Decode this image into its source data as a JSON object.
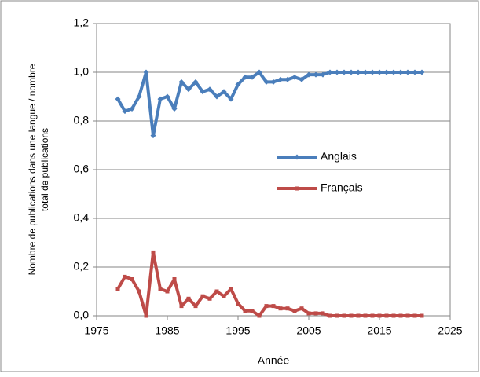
{
  "chart_data": {
    "type": "line",
    "x_label": "Année",
    "y_label": [
      "Nombre de publications dans une langue / nombre",
      "total de publications"
    ],
    "x": [
      1978,
      1979,
      1980,
      1981,
      1982,
      1983,
      1984,
      1985,
      1986,
      1987,
      1988,
      1989,
      1990,
      1991,
      1992,
      1993,
      1994,
      1995,
      1996,
      1997,
      1998,
      1999,
      2000,
      2001,
      2002,
      2003,
      2004,
      2005,
      2006,
      2007,
      2008,
      2009,
      2010,
      2011,
      2012,
      2013,
      2014,
      2015,
      2016,
      2017,
      2018,
      2019,
      2020,
      2021
    ],
    "series": [
      {
        "name": "Anglais",
        "color": "#4a7ebb",
        "marker": "diamond",
        "values": [
          0.89,
          0.84,
          0.85,
          0.9,
          1.0,
          0.74,
          0.89,
          0.9,
          0.85,
          0.96,
          0.93,
          0.96,
          0.92,
          0.93,
          0.9,
          0.92,
          0.89,
          0.95,
          0.98,
          0.98,
          1.0,
          0.96,
          0.96,
          0.97,
          0.97,
          0.98,
          0.97,
          0.99,
          0.99,
          0.99,
          1,
          1,
          1,
          1,
          1,
          1,
          1,
          1,
          1,
          1,
          1,
          1,
          1,
          1
        ]
      },
      {
        "name": "Français",
        "color": "#be4b48",
        "marker": "square",
        "values": [
          0.11,
          0.16,
          0.15,
          0.1,
          0.0,
          0.26,
          0.11,
          0.1,
          0.15,
          0.04,
          0.07,
          0.04,
          0.08,
          0.07,
          0.1,
          0.08,
          0.11,
          0.05,
          0.02,
          0.02,
          0.0,
          0.04,
          0.04,
          0.03,
          0.03,
          0.02,
          0.03,
          0.01,
          0.01,
          0.01,
          0,
          0,
          0,
          0,
          0,
          0,
          0,
          0,
          0,
          0,
          0,
          0,
          0,
          0
        ]
      }
    ],
    "xlim": [
      1975,
      2025
    ],
    "xticks": [
      1975,
      1985,
      1995,
      2005,
      2015,
      2025
    ],
    "ylim": [
      0,
      1.2
    ],
    "yticks": [
      {
        "value": 0,
        "label": "0,0"
      },
      {
        "value": 0.2,
        "label": "0,2"
      },
      {
        "value": 0.4,
        "label": "0,4"
      },
      {
        "value": 0.6,
        "label": "0,6"
      },
      {
        "value": 0.8,
        "label": "0,8"
      },
      {
        "value": 1.0,
        "label": "1,0"
      },
      {
        "value": 1.2,
        "label": "1,2"
      }
    ],
    "grid": true,
    "legend": "right"
  }
}
